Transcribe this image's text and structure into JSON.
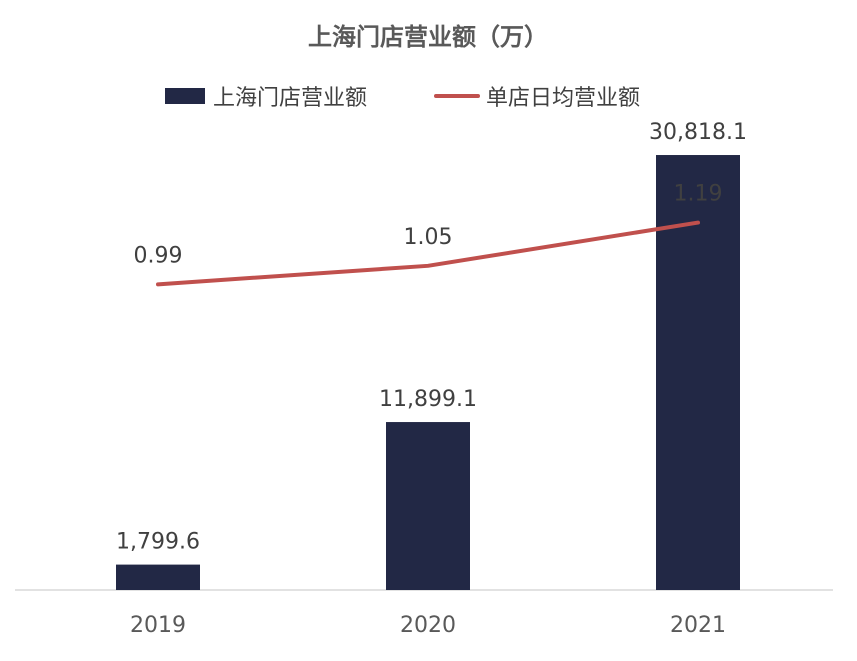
{
  "chart_data": {
    "type": "bar",
    "title": "上海门店营业额（万）",
    "categories": [
      "2019",
      "2020",
      "2021"
    ],
    "series": [
      {
        "name": "上海门店营业额",
        "type": "bar",
        "axis": "left",
        "color": "#222845",
        "values": [
          1799.6,
          11899.1,
          30818.1
        ],
        "labels": [
          "1,799.6",
          "11,899.1",
          "30,818.1"
        ]
      },
      {
        "name": "单店日均营业额",
        "type": "line",
        "axis": "right",
        "color": "#c0504d",
        "values": [
          0.99,
          1.05,
          1.19
        ],
        "labels": [
          "0.99",
          "1.05",
          "1.19"
        ]
      }
    ],
    "ylim_left": [
      0,
      35000
    ],
    "ylim_right": [
      0,
      1.6
    ],
    "grid": false,
    "legend_position": "top-center",
    "axis_color": "#d9d9d9",
    "text_color": "#404040"
  }
}
